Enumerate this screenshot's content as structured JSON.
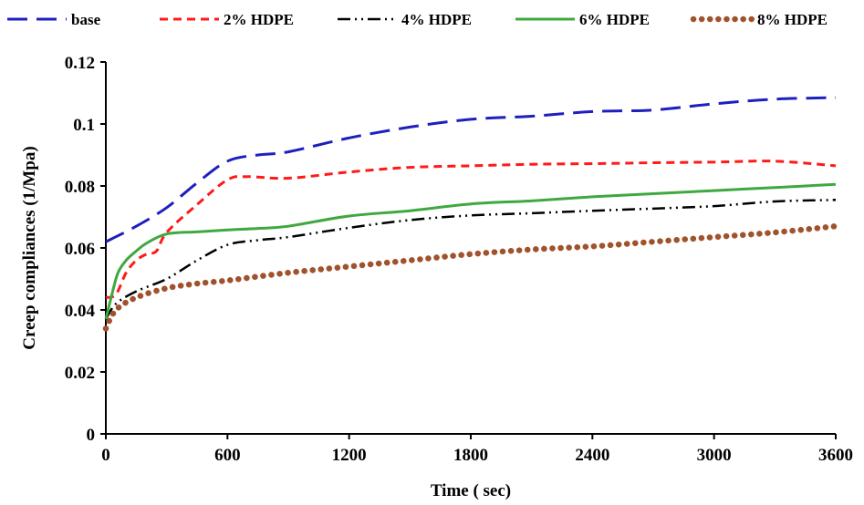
{
  "chart_data": {
    "type": "line",
    "title": "",
    "xlabel": "Time ( sec)",
    "ylabel": "Creep compliances (1/Mpa)",
    "xlim": [
      0,
      3600
    ],
    "ylim": [
      0,
      0.12
    ],
    "xticks": [
      0,
      600,
      1200,
      1800,
      2400,
      3000,
      3600
    ],
    "yticks": [
      0,
      0.02,
      0.04,
      0.06,
      0.08,
      0.1,
      0.12
    ],
    "xtick_labels": [
      "0",
      "600",
      "1200",
      "1800",
      "2400",
      "3000",
      "3600"
    ],
    "ytick_labels": [
      "0",
      "0.02",
      "0.04",
      "0.06",
      "0.08",
      "0.1",
      "0.12"
    ],
    "grid": false,
    "legend_position": "top",
    "series": [
      {
        "name": "base",
        "color": "#1f1fbf",
        "style": "dash",
        "x": [
          0,
          150,
          300,
          450,
          600,
          750,
          900,
          1200,
          1500,
          1800,
          2100,
          2400,
          2700,
          3000,
          3300,
          3600
        ],
        "y": [
          0.062,
          0.067,
          0.073,
          0.081,
          0.088,
          0.09,
          0.091,
          0.0955,
          0.099,
          0.1015,
          0.1025,
          0.104,
          0.1045,
          0.1065,
          0.108,
          0.1085
        ]
      },
      {
        "name": "2% HDPE",
        "color": "#ff1a1a",
        "style": "short-dash",
        "x": [
          0,
          50,
          100,
          150,
          200,
          250,
          300,
          450,
          600,
          700,
          900,
          1200,
          1500,
          1800,
          2100,
          2400,
          2700,
          3000,
          3300,
          3600
        ],
        "y": [
          0.044,
          0.045,
          0.052,
          0.056,
          0.058,
          0.059,
          0.065,
          0.074,
          0.082,
          0.083,
          0.0825,
          0.0845,
          0.086,
          0.0865,
          0.087,
          0.0872,
          0.0875,
          0.0877,
          0.088,
          0.0865
        ]
      },
      {
        "name": "4% HDPE",
        "color": "#000000",
        "style": "dash-dot-dot",
        "x": [
          0,
          50,
          150,
          300,
          450,
          600,
          750,
          900,
          1200,
          1500,
          1800,
          2100,
          2400,
          2700,
          3000,
          3300,
          3600
        ],
        "y": [
          0.037,
          0.042,
          0.046,
          0.05,
          0.056,
          0.061,
          0.0625,
          0.0635,
          0.0665,
          0.069,
          0.0705,
          0.0712,
          0.072,
          0.0727,
          0.0735,
          0.075,
          0.0755
        ]
      },
      {
        "name": "6% HDPE",
        "color": "#3fa83f",
        "style": "solid",
        "x": [
          0,
          30,
          60,
          100,
          150,
          200,
          300,
          450,
          600,
          750,
          900,
          1200,
          1500,
          1800,
          2100,
          2400,
          2700,
          3000,
          3300,
          3600
        ],
        "y": [
          0.037,
          0.045,
          0.052,
          0.056,
          0.059,
          0.0615,
          0.0645,
          0.0652,
          0.0658,
          0.0663,
          0.067,
          0.0703,
          0.072,
          0.0742,
          0.0752,
          0.0765,
          0.0775,
          0.0785,
          0.0795,
          0.0805
        ]
      },
      {
        "name": "8% HDPE",
        "color": "#a0522d",
        "style": "dot",
        "x": [
          0,
          50,
          150,
          300,
          450,
          600,
          900,
          1200,
          1500,
          1800,
          2100,
          2400,
          2700,
          3000,
          3300,
          3600
        ],
        "y": [
          0.034,
          0.04,
          0.044,
          0.047,
          0.0485,
          0.0495,
          0.052,
          0.054,
          0.056,
          0.058,
          0.0595,
          0.0605,
          0.062,
          0.0635,
          0.065,
          0.067
        ]
      }
    ]
  }
}
